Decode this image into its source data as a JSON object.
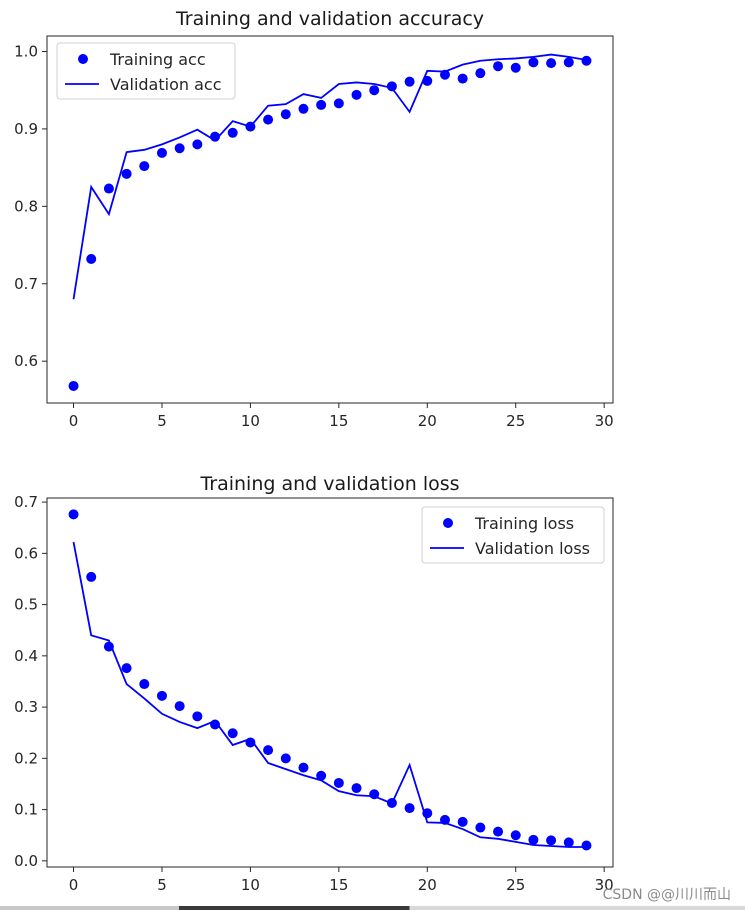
{
  "colors": {
    "series": "#0000ff",
    "axis": "#262626",
    "legend_border": "#d0d0d0"
  },
  "watermark": "CSDN @@川川而山",
  "chart_data": [
    {
      "type": "line",
      "title": "Training and validation accuracy",
      "xlim": [
        -1.5,
        30.5
      ],
      "ylim": [
        0.546,
        1.02
      ],
      "xticks": [
        0,
        5,
        10,
        15,
        20,
        25,
        30
      ],
      "yticks": [
        0.6,
        0.7,
        0.8,
        0.9,
        1.0
      ],
      "ytick_labels": [
        "0.6",
        "0.7",
        "0.8",
        "0.9",
        "1.0"
      ],
      "legend_position": "upper-left",
      "x": [
        0,
        1,
        2,
        3,
        4,
        5,
        6,
        7,
        8,
        9,
        10,
        11,
        12,
        13,
        14,
        15,
        16,
        17,
        18,
        19,
        20,
        21,
        22,
        23,
        24,
        25,
        26,
        27,
        28,
        29
      ],
      "series": [
        {
          "name": "Training acc",
          "style": "dots",
          "values": [
            0.568,
            0.732,
            0.823,
            0.842,
            0.852,
            0.869,
            0.875,
            0.88,
            0.89,
            0.895,
            0.903,
            0.912,
            0.919,
            0.926,
            0.931,
            0.933,
            0.944,
            0.95,
            0.955,
            0.961,
            0.962,
            0.97,
            0.965,
            0.972,
            0.981,
            0.979,
            0.986,
            0.985,
            0.986,
            0.988
          ]
        },
        {
          "name": "Validation acc",
          "style": "line",
          "values": [
            0.68,
            0.825,
            0.79,
            0.87,
            0.873,
            0.88,
            0.889,
            0.899,
            0.885,
            0.91,
            0.903,
            0.93,
            0.932,
            0.945,
            0.94,
            0.958,
            0.96,
            0.958,
            0.953,
            0.922,
            0.975,
            0.974,
            0.983,
            0.988,
            0.99,
            0.991,
            0.993,
            0.996,
            0.993,
            0.989
          ]
        }
      ]
    },
    {
      "type": "line",
      "title": "Training and validation loss",
      "xlim": [
        -1.5,
        30.5
      ],
      "ylim": [
        -0.012,
        0.708
      ],
      "xticks": [
        0,
        5,
        10,
        15,
        20,
        25,
        30
      ],
      "yticks": [
        0.0,
        0.1,
        0.2,
        0.3,
        0.4,
        0.5,
        0.6,
        0.7
      ],
      "ytick_labels": [
        "0.0",
        "0.1",
        "0.2",
        "0.3",
        "0.4",
        "0.5",
        "0.6",
        "0.7"
      ],
      "legend_position": "upper-right",
      "x": [
        0,
        1,
        2,
        3,
        4,
        5,
        6,
        7,
        8,
        9,
        10,
        11,
        12,
        13,
        14,
        15,
        16,
        17,
        18,
        19,
        20,
        21,
        22,
        23,
        24,
        25,
        26,
        27,
        28,
        29
      ],
      "series": [
        {
          "name": "Training loss",
          "style": "dots",
          "values": [
            0.676,
            0.554,
            0.418,
            0.376,
            0.345,
            0.322,
            0.302,
            0.282,
            0.266,
            0.249,
            0.231,
            0.216,
            0.2,
            0.182,
            0.166,
            0.152,
            0.142,
            0.13,
            0.113,
            0.103,
            0.093,
            0.08,
            0.076,
            0.065,
            0.057,
            0.05,
            0.041,
            0.04,
            0.036,
            0.03
          ]
        },
        {
          "name": "Validation loss",
          "style": "line",
          "values": [
            0.622,
            0.44,
            0.43,
            0.345,
            0.317,
            0.287,
            0.271,
            0.259,
            0.273,
            0.226,
            0.238,
            0.191,
            0.179,
            0.167,
            0.157,
            0.136,
            0.128,
            0.126,
            0.112,
            0.187,
            0.075,
            0.074,
            0.062,
            0.046,
            0.043,
            0.037,
            0.031,
            0.029,
            0.027,
            0.027
          ]
        }
      ]
    }
  ]
}
